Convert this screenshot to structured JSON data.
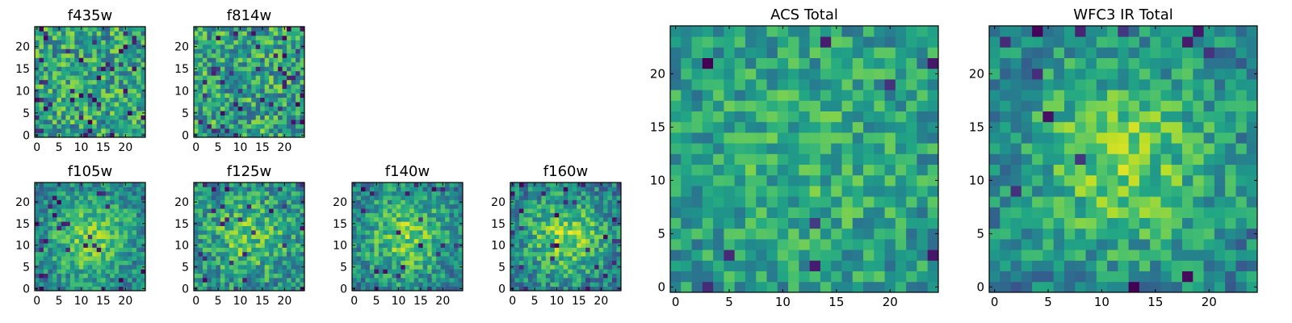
{
  "chart_data": [
    {
      "type": "heatmap",
      "title": "f435w",
      "x_ticks": [
        "0",
        "5",
        "10",
        "15",
        "20"
      ],
      "y_ticks": [
        "0",
        "5",
        "10",
        "15",
        "20"
      ],
      "grid": false,
      "colormap": "viridis",
      "rows": 25,
      "cols": 25,
      "seed": 11,
      "center": 0.0,
      "noise": 0.28,
      "dark_prob": 0.06
    },
    {
      "type": "heatmap",
      "title": "f814w",
      "x_ticks": [
        "0",
        "5",
        "10",
        "15",
        "20"
      ],
      "y_ticks": [
        "0",
        "5",
        "10",
        "15",
        "20"
      ],
      "grid": false,
      "colormap": "viridis",
      "rows": 25,
      "cols": 25,
      "seed": 23,
      "center": 0.0,
      "noise": 0.28,
      "dark_prob": 0.06
    },
    {
      "type": "heatmap",
      "title": "f105w",
      "x_ticks": [
        "0",
        "5",
        "10",
        "15",
        "20"
      ],
      "y_ticks": [
        "0",
        "5",
        "10",
        "15",
        "20"
      ],
      "grid": false,
      "colormap": "viridis",
      "rows": 25,
      "cols": 25,
      "seed": 37,
      "center": 0.35,
      "noise": 0.2,
      "dark_prob": 0.05
    },
    {
      "type": "heatmap",
      "title": "f125w",
      "x_ticks": [
        "0",
        "5",
        "10",
        "15",
        "20"
      ],
      "y_ticks": [
        "0",
        "5",
        "10",
        "15",
        "20"
      ],
      "grid": false,
      "colormap": "viridis",
      "rows": 25,
      "cols": 25,
      "seed": 41,
      "center": 0.25,
      "noise": 0.24,
      "dark_prob": 0.05
    },
    {
      "type": "heatmap",
      "title": "f140w",
      "x_ticks": [
        "0",
        "5",
        "10",
        "15",
        "20"
      ],
      "y_ticks": [
        "0",
        "5",
        "10",
        "15",
        "20"
      ],
      "grid": false,
      "colormap": "viridis",
      "rows": 25,
      "cols": 25,
      "seed": 53,
      "center": 0.35,
      "noise": 0.22,
      "dark_prob": 0.04
    },
    {
      "type": "heatmap",
      "title": "f160w",
      "x_ticks": [
        "0",
        "5",
        "10",
        "15",
        "20"
      ],
      "y_ticks": [
        "0",
        "5",
        "10",
        "15",
        "20"
      ],
      "grid": false,
      "colormap": "viridis",
      "rows": 25,
      "cols": 25,
      "seed": 67,
      "center": 0.4,
      "noise": 0.22,
      "dark_prob": 0.04
    },
    {
      "type": "heatmap",
      "title": "ACS Total",
      "x_ticks": [
        "0",
        "5",
        "10",
        "15",
        "20"
      ],
      "y_ticks": [
        "0",
        "5",
        "10",
        "15",
        "20"
      ],
      "grid": false,
      "colormap": "viridis",
      "rows": 25,
      "cols": 25,
      "seed": 79,
      "center": 0.1,
      "noise": 0.2,
      "dark_prob": 0.02
    },
    {
      "type": "heatmap",
      "title": "WFC3 IR Total",
      "x_ticks": [
        "0",
        "5",
        "10",
        "15",
        "20"
      ],
      "y_ticks": [
        "0",
        "5",
        "10",
        "15",
        "20"
      ],
      "grid": false,
      "colormap": "viridis",
      "rows": 25,
      "cols": 25,
      "seed": 97,
      "center": 0.35,
      "noise": 0.2,
      "dark_prob": 0.025
    }
  ]
}
